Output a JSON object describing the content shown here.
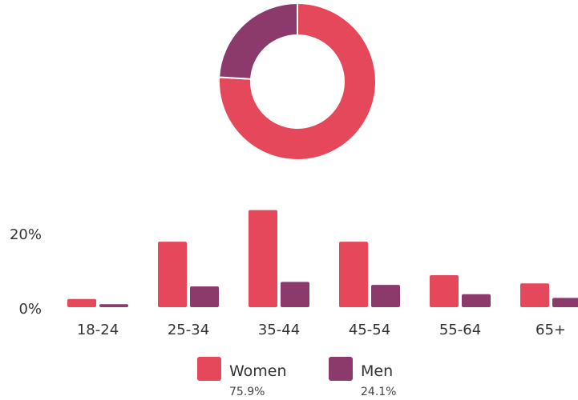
{
  "chart_data": [
    {
      "type": "pie",
      "style": "donut",
      "slices": [
        {
          "label": "Women",
          "value": 75.9,
          "color": "#E5485A"
        },
        {
          "label": "Men",
          "value": 24.1,
          "color": "#8B3A6B"
        }
      ]
    },
    {
      "type": "bar",
      "categories": [
        "18-24",
        "25-34",
        "35-44",
        "45-54",
        "55-64",
        "65+"
      ],
      "series": [
        {
          "name": "Women",
          "color": "#E5485A",
          "values": [
            2.2,
            17.6,
            26.1,
            17.6,
            8.6,
            6.4
          ]
        },
        {
          "name": "Men",
          "color": "#8B3A6B",
          "values": [
            0.8,
            5.6,
            6.8,
            6.0,
            3.5,
            2.5
          ]
        }
      ],
      "yticks": [
        "20%",
        "0%"
      ],
      "ytick_values": [
        20,
        0
      ],
      "ylim": [
        0,
        30
      ],
      "grid": false,
      "legend": {
        "position": "bottom",
        "entries": [
          {
            "label": "Women",
            "share": "75.9%",
            "color": "#E5485A"
          },
          {
            "label": "Men",
            "share": "24.1%",
            "color": "#8B3A6B"
          }
        ]
      }
    }
  ]
}
